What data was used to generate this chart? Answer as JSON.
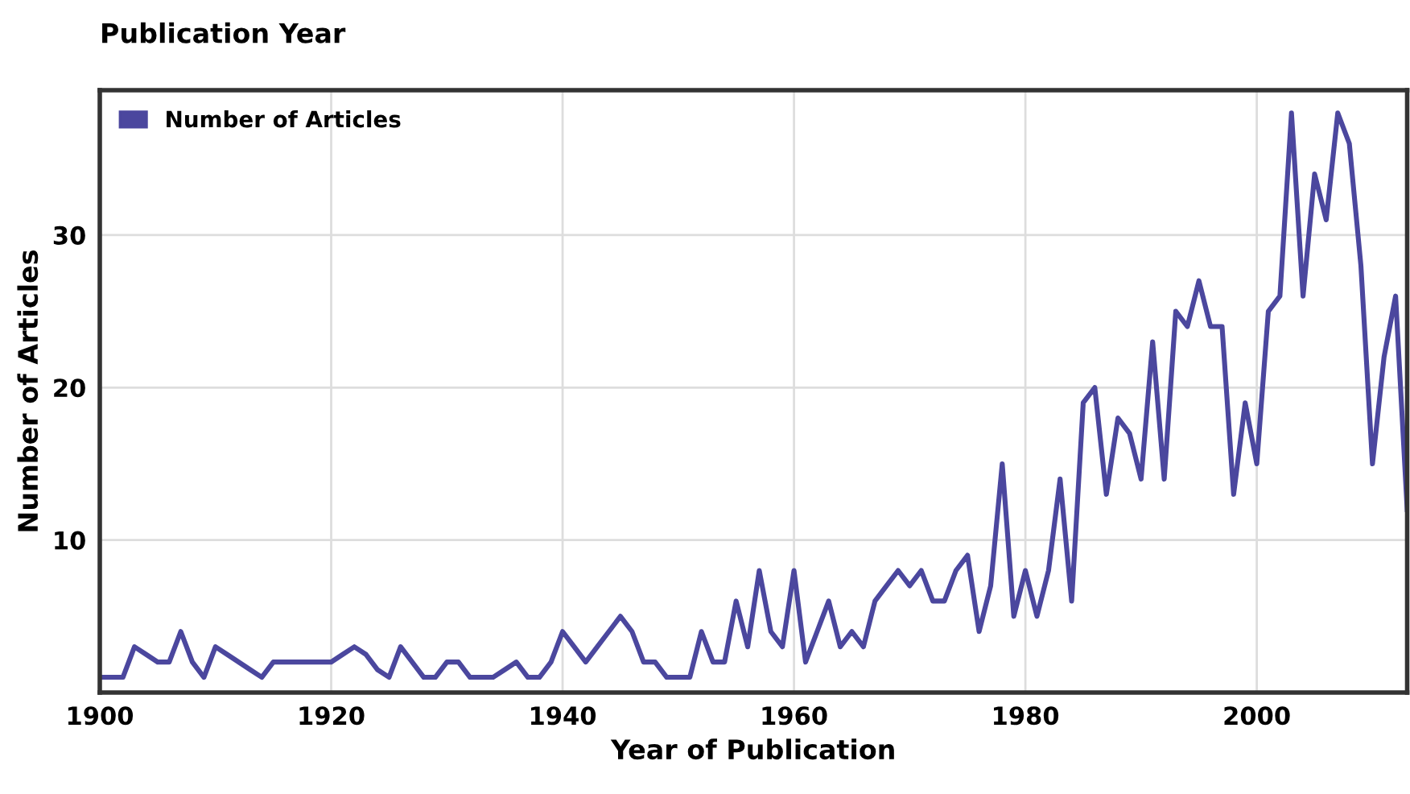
{
  "chart_data": {
    "type": "line",
    "title": "Publication Year",
    "xlabel": "Year of Publication",
    "ylabel": "Number of Articles",
    "x": [
      1900,
      1901,
      1902,
      1903,
      1904,
      1905,
      1906,
      1907,
      1908,
      1909,
      1910,
      1911,
      1912,
      1913,
      1914,
      1915,
      1916,
      1917,
      1918,
      1919,
      1920,
      1921,
      1922,
      1923,
      1924,
      1925,
      1926,
      1927,
      1928,
      1929,
      1930,
      1931,
      1932,
      1933,
      1934,
      1935,
      1936,
      1937,
      1938,
      1939,
      1940,
      1941,
      1942,
      1943,
      1944,
      1945,
      1946,
      1947,
      1948,
      1949,
      1950,
      1951,
      1952,
      1953,
      1954,
      1955,
      1956,
      1957,
      1958,
      1959,
      1960,
      1961,
      1962,
      1963,
      1964,
      1965,
      1966,
      1967,
      1968,
      1969,
      1970,
      1971,
      1972,
      1973,
      1974,
      1975,
      1976,
      1977,
      1978,
      1979,
      1980,
      1981,
      1982,
      1983,
      1984,
      1985,
      1986,
      1987,
      1988,
      1989,
      1990,
      1991,
      1992,
      1993,
      1994,
      1995,
      1996,
      1997,
      1998,
      1999,
      2000,
      2001,
      2002,
      2003,
      2004,
      2005,
      2006,
      2007,
      2008,
      2009,
      2010,
      2011,
      2012,
      2013
    ],
    "series": [
      {
        "name": "Number of Articles",
        "color": "#4b479e",
        "values": [
          1,
          1,
          1,
          3,
          2.5,
          2,
          2,
          4,
          2,
          1,
          3,
          2.5,
          2,
          1.5,
          1,
          2,
          2,
          2,
          2,
          2,
          2,
          2.5,
          3,
          2.5,
          1.5,
          1,
          3,
          2,
          1,
          1,
          2,
          2,
          1,
          1,
          1,
          1.5,
          2,
          1,
          1,
          2,
          4,
          3,
          2,
          3,
          4,
          5,
          4,
          2,
          2,
          1,
          1,
          1,
          4,
          2,
          2,
          6,
          3,
          8,
          4,
          3,
          8,
          2,
          4,
          6,
          3,
          4,
          3,
          6,
          7,
          8,
          7,
          8,
          6,
          6,
          8,
          9,
          4,
          7,
          15,
          5,
          8,
          5,
          8,
          14,
          6,
          19,
          20,
          13,
          18,
          17,
          14,
          23,
          14,
          25,
          24,
          27,
          24,
          24,
          13,
          19,
          15,
          25,
          26,
          38,
          26,
          34,
          31,
          38,
          36,
          28,
          15,
          22,
          26,
          12
        ]
      }
    ],
    "xlim": [
      1900,
      2013
    ],
    "ylim": [
      0,
      39.5
    ],
    "xticks": [
      1900,
      1920,
      1940,
      1960,
      1980,
      2000
    ],
    "yticks": [
      10,
      20,
      30
    ],
    "grid": true,
    "legend": "top left",
    "line_style": "solid",
    "marker": "none"
  }
}
